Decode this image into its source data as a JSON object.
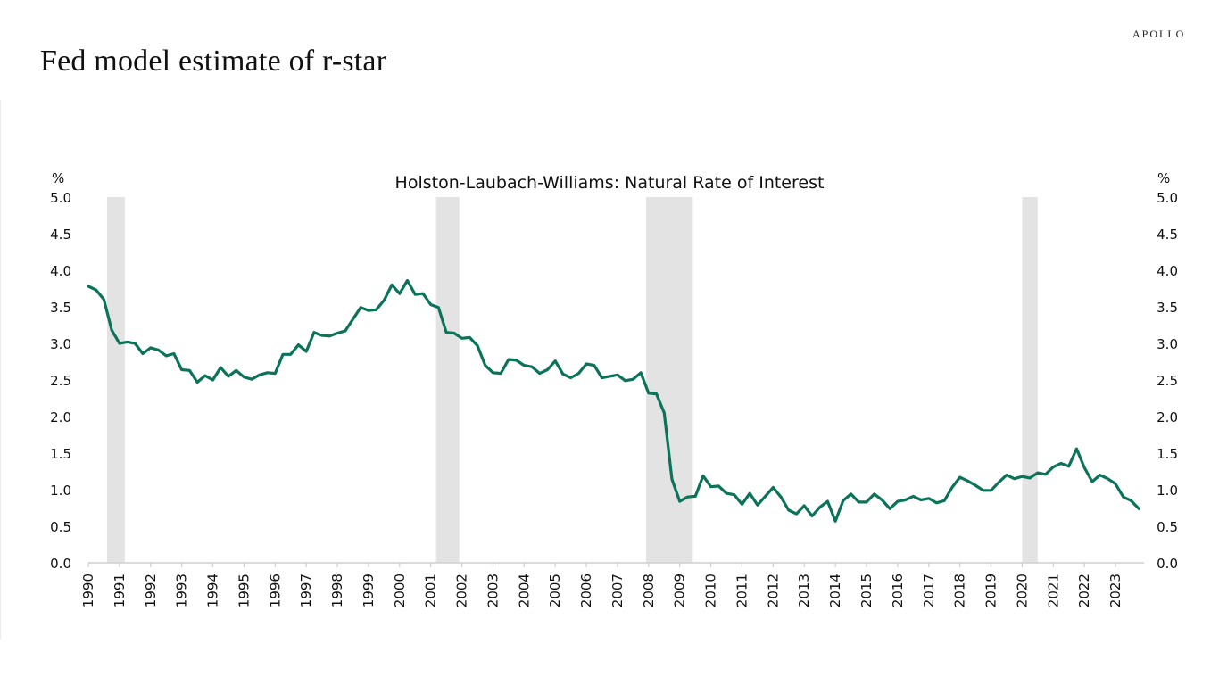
{
  "page": {
    "title": "Fed model estimate of  r-star",
    "logo": "APOLLO"
  },
  "colors": {
    "line": "#0b7359",
    "recession": "#e3e3e3",
    "axis": "#cfcfcf",
    "text": "#111111"
  },
  "chart_data": {
    "type": "line",
    "title": "Holston-Laubach-Williams: Natural Rate of Interest",
    "ylabel_left": "%",
    "ylabel_right": "%",
    "xlabel": "",
    "ylim": [
      0,
      5
    ],
    "yticks": [
      "0.0",
      "0.5",
      "1.0",
      "1.5",
      "2.0",
      "2.5",
      "3.0",
      "3.5",
      "4.0",
      "4.5",
      "5.0"
    ],
    "xticks": [
      "1990",
      "1991",
      "1992",
      "1993",
      "1994",
      "1995",
      "1996",
      "1997",
      "1998",
      "1999",
      "2000",
      "2001",
      "2002",
      "2003",
      "2004",
      "2005",
      "2006",
      "2007",
      "2008",
      "2009",
      "2010",
      "2011",
      "2012",
      "2013",
      "2014",
      "2015",
      "2016",
      "2017",
      "2018",
      "2019",
      "2020",
      "2021",
      "2022",
      "2023"
    ],
    "xlim": [
      1990,
      2024
    ],
    "frequency": "quarterly",
    "grid": false,
    "recessions": [
      {
        "start": 1990.6,
        "end": 1991.17
      },
      {
        "start": 2001.17,
        "end": 2001.92
      },
      {
        "start": 2007.92,
        "end": 2009.42
      },
      {
        "start": 2020.0,
        "end": 2020.5
      }
    ],
    "series": [
      {
        "name": "Natural Rate of Interest",
        "start": 1990.0,
        "step": 0.25,
        "values": [
          3.78,
          3.73,
          3.6,
          3.18,
          3.0,
          3.02,
          3.0,
          2.86,
          2.94,
          2.91,
          2.83,
          2.86,
          2.64,
          2.63,
          2.47,
          2.56,
          2.5,
          2.67,
          2.55,
          2.63,
          2.54,
          2.51,
          2.57,
          2.6,
          2.59,
          2.85,
          2.85,
          2.98,
          2.89,
          3.15,
          3.11,
          3.1,
          3.14,
          3.17,
          3.33,
          3.49,
          3.45,
          3.46,
          3.59,
          3.8,
          3.68,
          3.86,
          3.67,
          3.68,
          3.53,
          3.49,
          3.15,
          3.14,
          3.07,
          3.08,
          2.97,
          2.7,
          2.6,
          2.59,
          2.78,
          2.77,
          2.7,
          2.68,
          2.59,
          2.64,
          2.76,
          2.58,
          2.53,
          2.59,
          2.72,
          2.7,
          2.53,
          2.55,
          2.57,
          2.49,
          2.51,
          2.6,
          2.32,
          2.31,
          2.05,
          1.14,
          0.84,
          0.9,
          0.91,
          1.19,
          1.04,
          1.05,
          0.95,
          0.93,
          0.8,
          0.95,
          0.79,
          0.91,
          1.03,
          0.9,
          0.72,
          0.67,
          0.78,
          0.64,
          0.76,
          0.84,
          0.57,
          0.85,
          0.94,
          0.83,
          0.83,
          0.94,
          0.86,
          0.74,
          0.84,
          0.86,
          0.91,
          0.86,
          0.88,
          0.82,
          0.85,
          1.03,
          1.17,
          1.12,
          1.06,
          0.99,
          0.99,
          1.1,
          1.2,
          1.15,
          1.18,
          1.16,
          1.23,
          1.21,
          1.31,
          1.36,
          1.32,
          1.56,
          1.3,
          1.11,
          1.2,
          1.15,
          1.08,
          0.9,
          0.85,
          0.74
        ]
      }
    ]
  }
}
